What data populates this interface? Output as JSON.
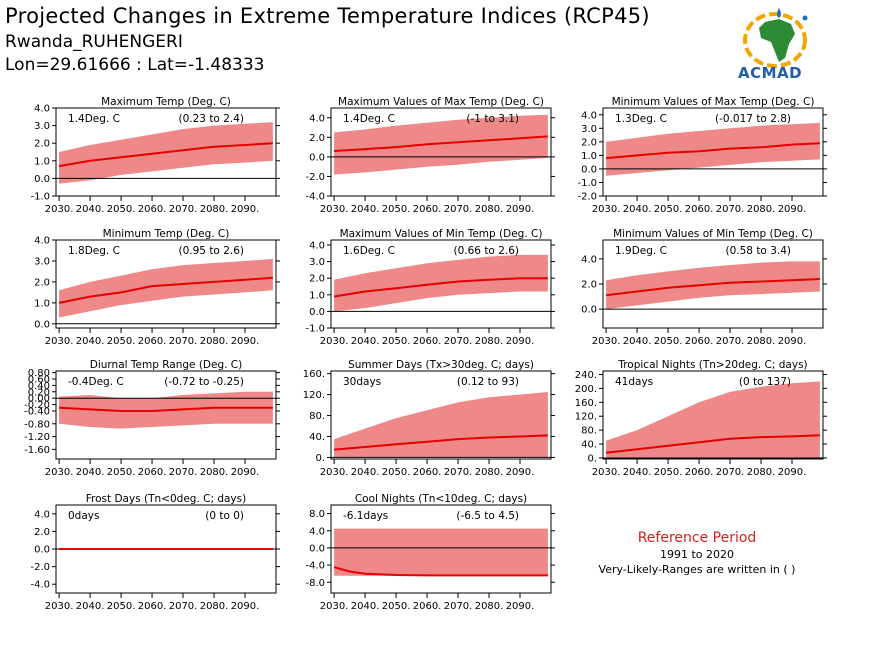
{
  "header": {
    "title": "Projected Changes in Extreme Temperature Indices (RCP45)",
    "region": "Rwanda_RUHENGERI",
    "coords": "Lon=29.61666 : Lat=-1.48333"
  },
  "logo": {
    "text": "ACMAD"
  },
  "reference": {
    "title": "Reference Period",
    "period": "1991 to 2020",
    "note": "Very-Likely-Ranges are written in ( )"
  },
  "colors": {
    "band": "#ef8888",
    "line": "#e60000",
    "zero": "#000000",
    "ref_title": "#d62020"
  },
  "chart_data": [
    {
      "type": "area",
      "title": "Maximum Temp (Deg. C)",
      "summary": "1.4Deg. C",
      "range": "(0.23 to 2.4)",
      "x_ticks": [
        2030,
        2040,
        2050,
        2060,
        2070,
        2080,
        2090
      ],
      "x_tick_labels": [
        "2030.",
        "2040.",
        "2050.",
        "2060.",
        "2070.",
        "2080.",
        "2090."
      ],
      "xlim": [
        2029,
        2100
      ],
      "ylim": [
        -1.0,
        4.0
      ],
      "y_ticks": [
        -1.0,
        0.0,
        1.0,
        2.0,
        3.0,
        4.0
      ],
      "y_tick_labels": [
        "-1.0",
        "0.0",
        "1.0",
        "2.0",
        "3.0",
        "4.0"
      ],
      "x": [
        2030,
        2040,
        2050,
        2060,
        2070,
        2080,
        2090,
        2099
      ],
      "median": [
        0.7,
        1.0,
        1.2,
        1.4,
        1.6,
        1.8,
        1.9,
        2.0
      ],
      "low": [
        -0.3,
        -0.1,
        0.2,
        0.4,
        0.6,
        0.8,
        0.9,
        1.0
      ],
      "high": [
        1.5,
        1.9,
        2.2,
        2.5,
        2.8,
        3.0,
        3.1,
        3.2
      ],
      "zero_line": true
    },
    {
      "type": "area",
      "title": "Maximum Values of Max Temp (Deg. C)",
      "summary": "1.4Deg. C",
      "range": "(-1 to 3.1)",
      "x_ticks": [
        2030,
        2040,
        2050,
        2060,
        2070,
        2080,
        2090
      ],
      "x_tick_labels": [
        "2030.",
        "2040.",
        "2050.",
        "2060.",
        "2070.",
        "2080.",
        "2090."
      ],
      "xlim": [
        2029,
        2100
      ],
      "ylim": [
        -4.0,
        5.0
      ],
      "y_ticks": [
        -4.0,
        -2.0,
        0.0,
        2.0,
        4.0
      ],
      "y_tick_labels": [
        "-4.0",
        "-2.0",
        "0.0",
        "2.0",
        "4.0"
      ],
      "x": [
        2030,
        2040,
        2050,
        2060,
        2070,
        2080,
        2090,
        2099
      ],
      "median": [
        0.6,
        0.8,
        1.0,
        1.3,
        1.5,
        1.7,
        1.9,
        2.1
      ],
      "low": [
        -1.8,
        -1.6,
        -1.3,
        -1.0,
        -0.8,
        -0.5,
        -0.3,
        -0.1
      ],
      "high": [
        2.5,
        2.8,
        3.2,
        3.5,
        3.8,
        4.0,
        4.2,
        4.3
      ],
      "zero_line": true
    },
    {
      "type": "area",
      "title": "Minimum Values of Max Temp (Deg. C)",
      "summary": "1.3Deg. C",
      "range": "(-0.017 to 2.8)",
      "x_ticks": [
        2030,
        2040,
        2050,
        2060,
        2070,
        2080,
        2090
      ],
      "x_tick_labels": [
        "2030.",
        "2040.",
        "2050.",
        "2060.",
        "2070.",
        "2080.",
        "2090."
      ],
      "xlim": [
        2029,
        2100
      ],
      "ylim": [
        -2.0,
        4.5
      ],
      "y_ticks": [
        -2.0,
        -1.0,
        0.0,
        1.0,
        2.0,
        3.0,
        4.0
      ],
      "y_tick_labels": [
        "-2.0",
        "-1.0",
        "0.0",
        "1.0",
        "2.0",
        "3.0",
        "4.0"
      ],
      "x": [
        2030,
        2040,
        2050,
        2060,
        2070,
        2080,
        2090,
        2099
      ],
      "median": [
        0.8,
        1.0,
        1.2,
        1.3,
        1.5,
        1.6,
        1.8,
        1.9
      ],
      "low": [
        -0.5,
        -0.3,
        -0.1,
        0.1,
        0.3,
        0.5,
        0.6,
        0.7
      ],
      "high": [
        2.0,
        2.3,
        2.6,
        2.8,
        3.0,
        3.2,
        3.3,
        3.4
      ],
      "zero_line": true
    },
    {
      "type": "area",
      "title": "Minimum Temp (Deg. C)",
      "summary": "1.8Deg. C",
      "range": "(0.95 to 2.6)",
      "x_ticks": [
        2030,
        2040,
        2050,
        2060,
        2070,
        2080,
        2090
      ],
      "x_tick_labels": [
        "2030.",
        "2040.",
        "2050.",
        "2060.",
        "2070.",
        "2080.",
        "2090."
      ],
      "xlim": [
        2029,
        2100
      ],
      "ylim": [
        -0.2,
        4.0
      ],
      "y_ticks": [
        0.0,
        1.0,
        2.0,
        3.0,
        4.0
      ],
      "y_tick_labels": [
        "0.0",
        "1.0",
        "2.0",
        "3.0",
        "4.0"
      ],
      "x": [
        2030,
        2040,
        2050,
        2060,
        2070,
        2080,
        2090,
        2099
      ],
      "median": [
        1.0,
        1.3,
        1.5,
        1.8,
        1.9,
        2.0,
        2.1,
        2.2
      ],
      "low": [
        0.3,
        0.6,
        0.9,
        1.1,
        1.3,
        1.4,
        1.5,
        1.6
      ],
      "high": [
        1.6,
        2.0,
        2.3,
        2.6,
        2.8,
        2.9,
        3.0,
        3.1
      ],
      "zero_line": true
    },
    {
      "type": "area",
      "title": "Maximum Values of Min Temp (Deg. C)",
      "summary": "1.6Deg. C",
      "range": "(0.66 to 2.6)",
      "x_ticks": [
        2030,
        2040,
        2050,
        2060,
        2070,
        2080,
        2090
      ],
      "x_tick_labels": [
        "2030.",
        "2040.",
        "2050.",
        "2060.",
        "2070.",
        "2080.",
        "2090."
      ],
      "xlim": [
        2029,
        2100
      ],
      "ylim": [
        -1.0,
        4.3
      ],
      "y_ticks": [
        -1.0,
        0.0,
        1.0,
        2.0,
        3.0,
        4.0
      ],
      "y_tick_labels": [
        "-1.0",
        "0.0",
        "1.0",
        "2.0",
        "3.0",
        "4.0"
      ],
      "x": [
        2030,
        2040,
        2050,
        2060,
        2070,
        2080,
        2090,
        2099
      ],
      "median": [
        0.9,
        1.2,
        1.4,
        1.6,
        1.8,
        1.9,
        2.0,
        2.0
      ],
      "low": [
        0.0,
        0.2,
        0.5,
        0.8,
        1.0,
        1.1,
        1.2,
        1.2
      ],
      "high": [
        1.9,
        2.3,
        2.6,
        2.9,
        3.1,
        3.3,
        3.4,
        3.4
      ],
      "zero_line": true
    },
    {
      "type": "area",
      "title": "Minimum Values of Min Temp (Deg. C)",
      "summary": "1.9Deg. C",
      "range": "(0.58 to 3.4)",
      "x_ticks": [
        2030,
        2040,
        2050,
        2060,
        2070,
        2080,
        2090
      ],
      "x_tick_labels": [
        "2030.",
        "2040.",
        "2050.",
        "2060.",
        "2070.",
        "2080.",
        "2090."
      ],
      "xlim": [
        2029,
        2100
      ],
      "ylim": [
        -1.5,
        5.5
      ],
      "y_ticks": [
        0.0,
        2.0,
        4.0
      ],
      "y_tick_labels": [
        "0.0",
        "2.0",
        "4.0"
      ],
      "x": [
        2030,
        2040,
        2050,
        2060,
        2070,
        2080,
        2090,
        2099
      ],
      "median": [
        1.1,
        1.4,
        1.7,
        1.9,
        2.1,
        2.2,
        2.3,
        2.4
      ],
      "low": [
        0.0,
        0.3,
        0.6,
        0.9,
        1.1,
        1.2,
        1.3,
        1.4
      ],
      "high": [
        2.3,
        2.7,
        3.0,
        3.3,
        3.5,
        3.7,
        3.8,
        3.8
      ],
      "zero_line": true
    },
    {
      "type": "area",
      "title": "Diurnal Temp Range (Deg. C)",
      "summary": "-0.4Deg. C",
      "range": "(-0.72 to -0.25)",
      "x_ticks": [
        2030,
        2040,
        2050,
        2060,
        2070,
        2080,
        2090
      ],
      "x_tick_labels": [
        "2030.",
        "2040.",
        "2050.",
        "2060.",
        "2070.",
        "2080.",
        "2090."
      ],
      "xlim": [
        2029,
        2100
      ],
      "ylim": [
        -1.9,
        0.85
      ],
      "y_ticks": [
        -1.6,
        -1.2,
        -0.8,
        -0.4,
        -0.2,
        0.0,
        0.2,
        0.4,
        0.6,
        0.8
      ],
      "y_tick_labels": [
        "-1.60",
        "-1.20",
        "-0.80",
        "-0.40",
        "-0.20",
        "0.00",
        "0.20",
        "0.40",
        "0.60",
        "0.80"
      ],
      "x": [
        2030,
        2040,
        2050,
        2060,
        2070,
        2080,
        2090,
        2099
      ],
      "median": [
        -0.3,
        -0.35,
        -0.4,
        -0.4,
        -0.35,
        -0.3,
        -0.3,
        -0.3
      ],
      "low": [
        -0.8,
        -0.9,
        -0.95,
        -0.9,
        -0.85,
        -0.8,
        -0.8,
        -0.8
      ],
      "high": [
        0.05,
        0.1,
        0.0,
        0.0,
        0.1,
        0.15,
        0.2,
        0.2
      ],
      "zero_line": true
    },
    {
      "type": "area",
      "title": "Summer Days (Tx>30deg. C; days)",
      "summary": "30days",
      "range": "(0.12 to 93)",
      "x_ticks": [
        2030,
        2040,
        2050,
        2060,
        2070,
        2080,
        2090
      ],
      "x_tick_labels": [
        "2030.",
        "2040.",
        "2050.",
        "2060.",
        "2070.",
        "2080.",
        "2090."
      ],
      "xlim": [
        2029,
        2100
      ],
      "ylim": [
        -3,
        165
      ],
      "y_ticks": [
        0,
        40,
        80,
        120,
        160
      ],
      "y_tick_labels": [
        "0.",
        "40.",
        "80.",
        "120.",
        "160."
      ],
      "x": [
        2030,
        2040,
        2050,
        2060,
        2070,
        2080,
        2090,
        2099
      ],
      "median": [
        15,
        20,
        25,
        30,
        35,
        38,
        40,
        42
      ],
      "low": [
        0,
        0,
        0,
        0,
        0,
        0,
        0,
        0
      ],
      "high": [
        35,
        55,
        75,
        90,
        105,
        115,
        120,
        125
      ],
      "zero_line": true
    },
    {
      "type": "area",
      "title": "Tropical Nights (Tn>20deg. C; days)",
      "summary": "41days",
      "range": "(0 to 137)",
      "x_ticks": [
        2030,
        2040,
        2050,
        2060,
        2070,
        2080,
        2090
      ],
      "x_tick_labels": [
        "2030.",
        "2040.",
        "2050.",
        "2060.",
        "2070.",
        "2080.",
        "2090."
      ],
      "xlim": [
        2029,
        2100
      ],
      "ylim": [
        -3,
        250
      ],
      "y_ticks": [
        0,
        40,
        80,
        120,
        160,
        200,
        240
      ],
      "y_tick_labels": [
        "0.",
        "40.",
        "80.",
        "120.",
        "160.",
        "200.",
        "240."
      ],
      "x": [
        2030,
        2040,
        2050,
        2060,
        2070,
        2080,
        2090,
        2099
      ],
      "median": [
        15,
        25,
        35,
        45,
        55,
        60,
        62,
        65
      ],
      "low": [
        0,
        0,
        0,
        0,
        0,
        0,
        0,
        0
      ],
      "high": [
        50,
        80,
        120,
        160,
        190,
        205,
        215,
        220
      ],
      "zero_line": true
    },
    {
      "type": "area",
      "title": "Frost Days (Tn<0deg. C; days)",
      "summary": "0days",
      "range": "(0 to 0)",
      "x_ticks": [
        2030,
        2040,
        2050,
        2060,
        2070,
        2080,
        2090
      ],
      "x_tick_labels": [
        "2030.",
        "2040.",
        "2050.",
        "2060.",
        "2070.",
        "2080.",
        "2090."
      ],
      "xlim": [
        2029,
        2100
      ],
      "ylim": [
        -5.0,
        5.0
      ],
      "y_ticks": [
        -4.0,
        -2.0,
        0.0,
        2.0,
        4.0
      ],
      "y_tick_labels": [
        "-4.0",
        "-2.0",
        "0.0",
        "2.0",
        "4.0"
      ],
      "x": [
        2030,
        2040,
        2050,
        2060,
        2070,
        2080,
        2090,
        2099
      ],
      "median": [
        0,
        0,
        0,
        0,
        0,
        0,
        0,
        0
      ],
      "low": [
        0,
        0,
        0,
        0,
        0,
        0,
        0,
        0
      ],
      "high": [
        0,
        0,
        0,
        0,
        0,
        0,
        0,
        0
      ],
      "zero_line": true
    },
    {
      "type": "area",
      "title": "Cool Nights (Tn<10deg. C; days)",
      "summary": "-6.1days",
      "range": "(-6.5 to 4.5)",
      "x_ticks": [
        2030,
        2040,
        2050,
        2060,
        2070,
        2080,
        2090
      ],
      "x_tick_labels": [
        "2030.",
        "2040.",
        "2050.",
        "2060.",
        "2070.",
        "2080.",
        "2090."
      ],
      "xlim": [
        2029,
        2100
      ],
      "ylim": [
        -10.5,
        10.0
      ],
      "y_ticks": [
        -8.0,
        -4.0,
        0.0,
        4.0,
        8.0
      ],
      "y_tick_labels": [
        "-8.0",
        "-4.0",
        "0.0",
        "4.0",
        "8.0"
      ],
      "x": [
        2030,
        2035,
        2040,
        2050,
        2060,
        2070,
        2080,
        2090,
        2099
      ],
      "median": [
        -4.5,
        -5.5,
        -6.0,
        -6.3,
        -6.4,
        -6.4,
        -6.4,
        -6.4,
        -6.4
      ],
      "low": [
        -6.5,
        -6.5,
        -6.5,
        -6.5,
        -6.5,
        -6.5,
        -6.5,
        -6.5,
        -6.5
      ],
      "high": [
        4.5,
        4.5,
        4.5,
        4.5,
        4.5,
        4.5,
        4.5,
        4.5,
        4.5
      ],
      "zero_line": true
    }
  ]
}
